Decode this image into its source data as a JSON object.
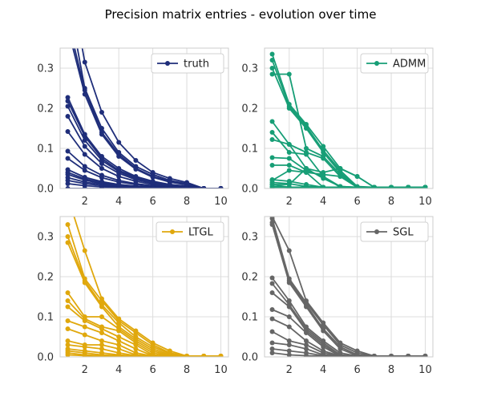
{
  "title": "Precision matrix entries - evolution over time",
  "chart_data": [
    {
      "type": "line",
      "legend": "truth",
      "legend_position": "top-right",
      "color": "#1f2e7a",
      "x": [
        1,
        2,
        3,
        4,
        5,
        6,
        7,
        8,
        9,
        10
      ],
      "xticks": [
        2,
        4,
        6,
        8,
        10
      ],
      "yticks": [
        0.0,
        0.1,
        0.2,
        0.3
      ],
      "ytick_labels": [
        "0.0",
        "0.1",
        "0.2",
        "0.3"
      ],
      "xlim": [
        0.55,
        10.45
      ],
      "ylim": [
        0,
        0.35
      ],
      "grid": true,
      "series": [
        {
          "values": [
            0.55,
            0.315,
            0.19,
            0.115,
            0.07,
            0.04,
            0.025,
            0.015,
            0,
            0
          ]
        },
        {
          "values": [
            0.48,
            0.25,
            0.15,
            0.09,
            0.055,
            0.035,
            0.02,
            0.012,
            0,
            0
          ]
        },
        {
          "values": [
            0.42,
            0.245,
            0.14,
            0.085,
            0.05,
            0.03,
            0.018,
            0.01,
            0,
            0
          ]
        },
        {
          "values": [
            0.4,
            0.235,
            0.135,
            0.08,
            0.048,
            0.028,
            0.016,
            0.009,
            0,
            0
          ]
        },
        {
          "values": [
            0.227,
            0.135,
            0.08,
            0.05,
            0.03,
            0.018,
            0.01,
            0.006,
            0,
            0
          ]
        },
        {
          "values": [
            0.218,
            0.13,
            0.075,
            0.045,
            0.028,
            0.016,
            0.009,
            0.005,
            0,
            0
          ]
        },
        {
          "values": [
            0.205,
            0.12,
            0.07,
            0.042,
            0.025,
            0.015,
            0.008,
            0.005,
            0,
            0
          ]
        },
        {
          "values": [
            0.18,
            0.105,
            0.062,
            0.038,
            0.022,
            0.013,
            0.007,
            0.004,
            0,
            0
          ]
        },
        {
          "values": [
            0.142,
            0.085,
            0.05,
            0.03,
            0.018,
            0.01,
            0.006,
            0.003,
            0,
            0
          ]
        },
        {
          "values": [
            0.093,
            0.055,
            0.033,
            0.02,
            0.012,
            0.007,
            0.004,
            0.002,
            0,
            0
          ]
        },
        {
          "values": [
            0.075,
            0.045,
            0.027,
            0.016,
            0.01,
            0.006,
            0.003,
            0.002,
            0,
            0
          ]
        },
        {
          "values": [
            0.047,
            0.028,
            0.017,
            0.01,
            0.006,
            0.004,
            0.002,
            0.001,
            0,
            0
          ]
        },
        {
          "values": [
            0.04,
            0.024,
            0.014,
            0.009,
            0.005,
            0.003,
            0.002,
            0.001,
            0,
            0
          ]
        },
        {
          "values": [
            0.035,
            0.021,
            0.012,
            0.007,
            0.004,
            0.003,
            0.002,
            0.001,
            0,
            0
          ]
        },
        {
          "values": [
            0.027,
            0.016,
            0.01,
            0.006,
            0.004,
            0.002,
            0.001,
            0.001,
            0,
            0
          ]
        },
        {
          "values": [
            0.02,
            0.012,
            0.007,
            0.004,
            0.003,
            0.002,
            0.001,
            0,
            0,
            0
          ]
        },
        {
          "values": [
            0.012,
            0.007,
            0.004,
            0.003,
            0.002,
            0.001,
            0,
            0,
            0,
            0
          ]
        },
        {
          "values": [
            0,
            0,
            0,
            0,
            0,
            0,
            0,
            0,
            0,
            0
          ]
        }
      ]
    },
    {
      "type": "line",
      "legend": "ADMM",
      "legend_position": "top-right",
      "color": "#179e76",
      "x": [
        1,
        2,
        3,
        4,
        5,
        6,
        7,
        8,
        9,
        10
      ],
      "xticks": [
        2,
        4,
        6,
        8,
        10
      ],
      "yticks": [
        0.0,
        0.1,
        0.2,
        0.3
      ],
      "ytick_labels": [
        "0.0",
        "0.1",
        "0.2",
        "0.3"
      ],
      "xlim": [
        0.55,
        10.45
      ],
      "ylim": [
        0,
        0.35
      ],
      "grid": true,
      "series": [
        {
          "values": [
            0.335,
            0.21,
            0.16,
            0.105,
            0.05,
            0.03,
            0.003,
            0.003,
            0.003,
            0.003
          ]
        },
        {
          "values": [
            0.32,
            0.205,
            0.155,
            0.095,
            0.045,
            0.005,
            0.003,
            0.003,
            0.003,
            0.003
          ]
        },
        {
          "values": [
            0.3,
            0.2,
            0.15,
            0.09,
            0.04,
            0.003,
            0.003,
            0.003,
            0.003,
            0.003
          ]
        },
        {
          "values": [
            0.285,
            0.285,
            0.1,
            0.08,
            0.035,
            0.003,
            0.003,
            0.003,
            0.003,
            0.003
          ]
        },
        {
          "values": [
            0.167,
            0.11,
            0.09,
            0.075,
            0.03,
            0.003,
            0.003,
            0.003,
            0.003,
            0.003
          ]
        },
        {
          "values": [
            0.14,
            0.09,
            0.085,
            0.03,
            0.005,
            0.003,
            0.003,
            0.003,
            0.003,
            0.003
          ]
        },
        {
          "values": [
            0.122,
            0.11,
            0.05,
            0.025,
            0.005,
            0.003,
            0.003,
            0.003,
            0.003,
            0.003
          ]
        },
        {
          "values": [
            0.077,
            0.075,
            0.045,
            0.03,
            0.003,
            0.003,
            0.003,
            0.003,
            0.003,
            0.003
          ]
        },
        {
          "values": [
            0.058,
            0.058,
            0.04,
            0.003,
            0.003,
            0.003,
            0.003,
            0.003,
            0.003,
            0.003
          ]
        },
        {
          "values": [
            0.022,
            0.018,
            0.01,
            0.003,
            0.003,
            0.003,
            0.003,
            0.003,
            0.003,
            0.003
          ]
        },
        {
          "values": [
            0.015,
            0.012,
            0.005,
            0.003,
            0.003,
            0.003,
            0.003,
            0.003,
            0.003,
            0.003
          ]
        },
        {
          "values": [
            0.01,
            0.003,
            0.003,
            0.003,
            0.003,
            0.003,
            0.003,
            0.003,
            0.003,
            0.003
          ]
        },
        {
          "values": [
            0.005,
            0.003,
            0.003,
            0.003,
            0.003,
            0.003,
            0.003,
            0.003,
            0.003,
            0.003
          ]
        },
        {
          "values": [
            0.003,
            0.003,
            0.003,
            0.003,
            0.003,
            0.003,
            0.003,
            0.003,
            0.003,
            0.003
          ]
        },
        {
          "values": [
            0.02,
            0.045,
            0.04,
            0.035,
            0.03,
            0.003,
            0.003,
            0.003,
            0.003,
            0.003
          ]
        },
        {
          "values": [
            0.01,
            0.01,
            0.05,
            0.04,
            0.05,
            0.03,
            0.003,
            0.003,
            0.003,
            0.003
          ]
        }
      ]
    },
    {
      "type": "line",
      "legend": "LTGL",
      "legend_position": "top-right",
      "color": "#e0a80d",
      "x": [
        1,
        2,
        3,
        4,
        5,
        6,
        7,
        8,
        9,
        10
      ],
      "xticks": [
        2,
        4,
        6,
        8,
        10
      ],
      "yticks": [
        0.0,
        0.1,
        0.2,
        0.3
      ],
      "ytick_labels": [
        "0.0",
        "0.1",
        "0.2",
        "0.3"
      ],
      "xlim": [
        0.55,
        10.45
      ],
      "ylim": [
        0,
        0.35
      ],
      "grid": true,
      "series": [
        {
          "values": [
            0.4,
            0.265,
            0.145,
            0.095,
            0.065,
            0.035,
            0.015,
            0.002,
            0.002,
            0.002
          ]
        },
        {
          "values": [
            0.33,
            0.195,
            0.14,
            0.09,
            0.06,
            0.03,
            0.01,
            0.002,
            0.002,
            0.002
          ]
        },
        {
          "values": [
            0.3,
            0.19,
            0.13,
            0.085,
            0.05,
            0.025,
            0.008,
            0.002,
            0.002,
            0.002
          ]
        },
        {
          "values": [
            0.285,
            0.185,
            0.125,
            0.075,
            0.045,
            0.02,
            0.005,
            0.002,
            0.002,
            0.002
          ]
        },
        {
          "values": [
            0.16,
            0.1,
            0.1,
            0.07,
            0.04,
            0.015,
            0.003,
            0.002,
            0.002,
            0.002
          ]
        },
        {
          "values": [
            0.14,
            0.095,
            0.075,
            0.065,
            0.035,
            0.01,
            0.002,
            0.002,
            0.002,
            0.002
          ]
        },
        {
          "values": [
            0.125,
            0.09,
            0.07,
            0.05,
            0.03,
            0.005,
            0.002,
            0.002,
            0.002,
            0.002
          ]
        },
        {
          "values": [
            0.09,
            0.075,
            0.06,
            0.04,
            0.02,
            0.003,
            0.002,
            0.002,
            0.002,
            0.002
          ]
        },
        {
          "values": [
            0.07,
            0.055,
            0.04,
            0.03,
            0.01,
            0.002,
            0.002,
            0.002,
            0.002,
            0.002
          ]
        },
        {
          "values": [
            0.04,
            0.03,
            0.03,
            0.02,
            0.005,
            0.002,
            0.002,
            0.002,
            0.002,
            0.002
          ]
        },
        {
          "values": [
            0.03,
            0.025,
            0.02,
            0.01,
            0.003,
            0.002,
            0.002,
            0.002,
            0.002,
            0.002
          ]
        },
        {
          "values": [
            0.02,
            0.015,
            0.01,
            0.005,
            0.002,
            0.002,
            0.002,
            0.002,
            0.002,
            0.002
          ]
        },
        {
          "values": [
            0.015,
            0.01,
            0.005,
            0.003,
            0.002,
            0.002,
            0.002,
            0.002,
            0.002,
            0.002
          ]
        },
        {
          "values": [
            0.01,
            0.005,
            0.003,
            0.002,
            0.002,
            0.002,
            0.002,
            0.002,
            0.002,
            0.002
          ]
        },
        {
          "values": [
            0.005,
            0.003,
            0.002,
            0.002,
            0.002,
            0.002,
            0.002,
            0.002,
            0.002,
            0.002
          ]
        }
      ]
    },
    {
      "type": "line",
      "legend": "SGL",
      "legend_position": "top-right",
      "color": "#666666",
      "x": [
        1,
        2,
        3,
        4,
        5,
        6,
        7,
        8,
        9,
        10
      ],
      "xticks": [
        2,
        4,
        6,
        8,
        10
      ],
      "yticks": [
        0.0,
        0.1,
        0.2,
        0.3
      ],
      "ytick_labels": [
        "0.0",
        "0.1",
        "0.2",
        "0.3"
      ],
      "xlim": [
        0.55,
        10.45
      ],
      "ylim": [
        0,
        0.35
      ],
      "grid": true,
      "series": [
        {
          "values": [
            0.35,
            0.265,
            0.14,
            0.085,
            0.035,
            0.015,
            0.002,
            0.002,
            0.002,
            0.002
          ]
        },
        {
          "values": [
            0.345,
            0.195,
            0.135,
            0.08,
            0.03,
            0.01,
            0.002,
            0.002,
            0.002,
            0.002
          ]
        },
        {
          "values": [
            0.335,
            0.19,
            0.13,
            0.07,
            0.025,
            0.005,
            0.002,
            0.002,
            0.002,
            0.002
          ]
        },
        {
          "values": [
            0.33,
            0.185,
            0.125,
            0.065,
            0.02,
            0.003,
            0.002,
            0.002,
            0.002,
            0.002
          ]
        },
        {
          "values": [
            0.197,
            0.14,
            0.075,
            0.04,
            0.01,
            0.002,
            0.002,
            0.002,
            0.002,
            0.002
          ]
        },
        {
          "values": [
            0.183,
            0.13,
            0.07,
            0.035,
            0.005,
            0.002,
            0.002,
            0.002,
            0.002,
            0.002
          ]
        },
        {
          "values": [
            0.16,
            0.125,
            0.065,
            0.03,
            0.003,
            0.002,
            0.002,
            0.002,
            0.002,
            0.002
          ]
        },
        {
          "values": [
            0.118,
            0.1,
            0.06,
            0.025,
            0.002,
            0.002,
            0.002,
            0.002,
            0.002,
            0.002
          ]
        },
        {
          "values": [
            0.095,
            0.075,
            0.04,
            0.015,
            0.002,
            0.002,
            0.002,
            0.002,
            0.002,
            0.002
          ]
        },
        {
          "values": [
            0.063,
            0.04,
            0.03,
            0.01,
            0.002,
            0.002,
            0.002,
            0.002,
            0.002,
            0.002
          ]
        },
        {
          "values": [
            0.035,
            0.03,
            0.02,
            0.005,
            0.002,
            0.002,
            0.002,
            0.002,
            0.002,
            0.002
          ]
        },
        {
          "values": [
            0.02,
            0.015,
            0.01,
            0.003,
            0.002,
            0.002,
            0.002,
            0.002,
            0.002,
            0.002
          ]
        },
        {
          "values": [
            0.01,
            0.005,
            0.003,
            0.002,
            0.002,
            0.002,
            0.002,
            0.002,
            0.002,
            0.002
          ]
        }
      ]
    }
  ]
}
